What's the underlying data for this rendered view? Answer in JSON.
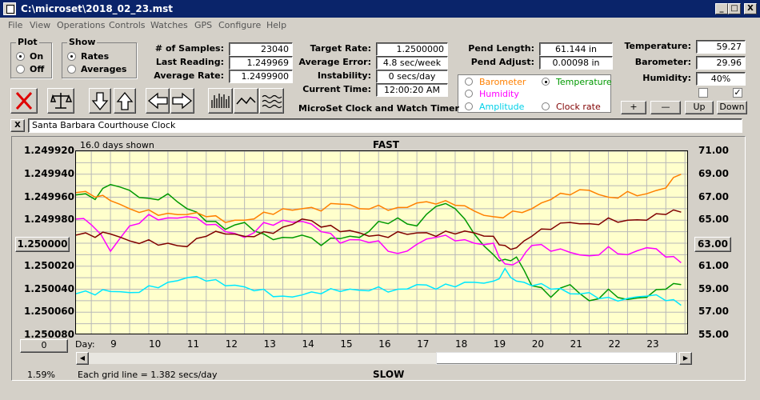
{
  "window": {
    "title": "C:\\microset\\2018_02_23.mst",
    "min": "_",
    "max": "□",
    "close": "X"
  },
  "menu": [
    "File",
    "View",
    "Operations",
    "Controls",
    "Watches",
    "GPS",
    "Configure",
    "Help"
  ],
  "plot_group": {
    "title": "Plot",
    "on": "On",
    "off": "Off",
    "selected": "On"
  },
  "show_group": {
    "title": "Show",
    "rates": "Rates",
    "averages": "Averages",
    "selected": "Rates"
  },
  "stats": {
    "samples_label": "# of Samples:",
    "samples": "23040",
    "last_label": "Last Reading:",
    "last": "1.249969",
    "avg_label": "Average Rate:",
    "avg": "1.2499900"
  },
  "target": {
    "rate_label": "Target Rate:",
    "rate": "1.2500000",
    "err_label": "Average Error:",
    "err": "4.8 sec/week",
    "inst_label": "Instability:",
    "inst": "0 secs/day",
    "time_label": "Current Time:",
    "time": "12:00:20 AM"
  },
  "pend": {
    "length_label": "Pend Length:",
    "length": "61.144 in",
    "adjust_label": "Pend Adjust:",
    "adjust": "0.00098 in"
  },
  "env": {
    "temp_label": "Temperature:",
    "temp": "59.27",
    "baro_label": "Barometer:",
    "baro": "29.96",
    "hum_label": "Humidity:",
    "hum": "40%"
  },
  "app_title": "MicroSet Clock and Watch Timer",
  "legend": {
    "barometer": "Barometer",
    "temperature": "Temperature",
    "humidity": "Humidity",
    "amplitude": "Amplitude",
    "clock_rate": "Clock rate",
    "selected": "Temperature"
  },
  "adjust_buttons": {
    "plus": "+",
    "minus": "—",
    "up": "Up",
    "down": "Down"
  },
  "checkbox_right": "✓",
  "clock_name": "Santa Barbara Courthouse Clock",
  "close_small": "X",
  "plot": {
    "days_shown": "16.0 days shown",
    "fast": "FAST",
    "slow": "SLOW",
    "grid_note": "Each grid line = 1.382 secs/day",
    "percent": "1.59%",
    "left_button": "1.250000",
    "right_button": "63.00",
    "zero_button": "0",
    "day_label": "Day:"
  },
  "colors": {
    "temperature": "#009900",
    "barometer": "#ff8000",
    "humidity": "#ff00ff",
    "amplitude": "#00e8ff",
    "clock_rate": "#800000",
    "plot_bg": "#ffffcc",
    "title_bar": "#0a246a"
  },
  "chart_data": {
    "type": "line",
    "title": "",
    "xlabel": "Day:",
    "x_ticks": [
      "9",
      "10",
      "11",
      "12",
      "13",
      "14",
      "15",
      "16",
      "17",
      "18",
      "19",
      "20",
      "21",
      "22",
      "23"
    ],
    "xlim": [
      8.1,
      24.1
    ],
    "y_left_ticks": [
      "1.249920",
      "1.249940",
      "1.249960",
      "1.249980",
      "1.250000",
      "1.250020",
      "1.250040",
      "1.250060",
      "1.250080"
    ],
    "y_left_range": [
      1.24992,
      1.25008
    ],
    "y_right_ticks": [
      "71.00",
      "69.00",
      "67.00",
      "65.00",
      "63.00",
      "61.00",
      "59.00",
      "57.00",
      "55.00"
    ],
    "y_right_range": [
      71,
      55
    ],
    "grid": true,
    "series": [
      {
        "name": "Temperature",
        "color": "#009900",
        "x": [
          8.1,
          8.6,
          9.0,
          9.5,
          10.0,
          10.5,
          11.0,
          11.5,
          12.0,
          12.5,
          13.0,
          13.5,
          14.0,
          14.5,
          15.0,
          15.5,
          16.0,
          16.5,
          17.0,
          17.5,
          18.0,
          18.5,
          19.0,
          19.3,
          19.6,
          20.0,
          20.5,
          21.0,
          21.5,
          22.0,
          22.5,
          23.0,
          23.5,
          23.9
        ],
        "y": [
          67.2,
          66.8,
          68.1,
          67.6,
          66.9,
          67.3,
          66.0,
          64.9,
          64.2,
          64.8,
          63.8,
          63.5,
          63.7,
          62.8,
          63.4,
          63.5,
          64.9,
          65.2,
          64.5,
          66.2,
          66.0,
          63.8,
          62.0,
          61.6,
          61.8,
          59.3,
          58.3,
          59.4,
          58.0,
          59.0,
          58.1,
          58.3,
          59.0,
          59.4
        ]
      },
      {
        "name": "Barometer",
        "color": "#ff8000",
        "x": [
          8.1,
          8.6,
          9.0,
          9.5,
          10.0,
          10.5,
          11.0,
          11.5,
          12.0,
          12.5,
          13.0,
          13.5,
          14.0,
          14.5,
          15.0,
          15.5,
          16.0,
          16.5,
          17.0,
          17.5,
          18.0,
          18.5,
          19.0,
          19.5,
          20.0,
          20.5,
          21.0,
          21.5,
          22.0,
          22.5,
          23.0,
          23.5,
          23.9
        ],
        "y": [
          67.4,
          67.0,
          66.7,
          66.0,
          65.9,
          65.6,
          65.5,
          65.3,
          64.8,
          65.0,
          65.7,
          66.0,
          66.0,
          65.8,
          66.4,
          66.0,
          66.3,
          66.1,
          66.5,
          66.4,
          66.3,
          65.8,
          65.3,
          65.8,
          66.0,
          66.8,
          67.2,
          67.6,
          67.0,
          67.5,
          67.3,
          67.8,
          69.0
        ]
      },
      {
        "name": "Humidity",
        "color": "#ff00ff",
        "x": [
          8.1,
          8.5,
          9.0,
          9.5,
          10.0,
          10.5,
          11.0,
          11.5,
          12.0,
          12.5,
          13.0,
          13.5,
          14.0,
          14.5,
          15.0,
          15.5,
          16.0,
          16.5,
          17.0,
          17.5,
          18.0,
          18.5,
          19.0,
          19.3,
          19.7,
          20.0,
          20.5,
          21.0,
          21.5,
          22.0,
          22.5,
          23.0,
          23.5,
          23.9
        ],
        "y": [
          65.1,
          64.6,
          62.3,
          64.5,
          65.5,
          65.2,
          65.3,
          64.6,
          64.0,
          63.5,
          64.8,
          65.0,
          64.9,
          64.0,
          63.0,
          63.3,
          63.2,
          62.1,
          62.9,
          63.5,
          63.2,
          63.0,
          63.0,
          61.2,
          61.5,
          62.8,
          62.3,
          62.2,
          61.9,
          62.7,
          62.0,
          62.6,
          61.8,
          61.3
        ]
      },
      {
        "name": "Amplitude",
        "color": "#00e8ff",
        "x": [
          8.1,
          8.6,
          9.0,
          9.5,
          10.0,
          10.5,
          11.0,
          11.5,
          12.0,
          12.5,
          13.0,
          13.5,
          14.0,
          14.5,
          15.0,
          15.5,
          16.0,
          16.5,
          17.0,
          17.5,
          18.0,
          18.5,
          19.0,
          19.3,
          19.6,
          20.0,
          20.5,
          21.0,
          21.5,
          22.0,
          22.5,
          23.0,
          23.5,
          23.9
        ],
        "y": [
          58.6,
          58.5,
          58.8,
          58.7,
          59.3,
          59.6,
          60.0,
          59.7,
          59.3,
          59.2,
          59.0,
          58.4,
          58.5,
          58.6,
          58.8,
          58.9,
          59.2,
          59.0,
          59.4,
          59.0,
          59.2,
          59.6,
          59.7,
          60.8,
          59.7,
          59.3,
          59.0,
          58.6,
          58.7,
          58.3,
          58.2,
          58.4,
          58.0,
          57.6
        ]
      },
      {
        "name": "Clock rate",
        "color": "#800000",
        "x": [
          8.1,
          8.6,
          9.0,
          9.5,
          10.0,
          10.5,
          11.0,
          11.5,
          12.0,
          12.5,
          13.0,
          13.5,
          14.0,
          14.5,
          15.0,
          15.5,
          16.0,
          16.5,
          17.0,
          17.5,
          18.0,
          18.5,
          19.0,
          19.3,
          19.6,
          20.0,
          20.5,
          21.0,
          21.5,
          22.0,
          22.5,
          23.0,
          23.5,
          23.9
        ],
        "y": [
          63.7,
          63.5,
          63.8,
          63.2,
          63.3,
          63.0,
          62.7,
          63.6,
          63.8,
          63.6,
          64.0,
          64.4,
          65.1,
          64.4,
          64.0,
          63.9,
          63.7,
          64.0,
          63.9,
          63.6,
          63.8,
          63.9,
          63.6,
          62.8,
          62.6,
          63.6,
          64.2,
          64.8,
          64.7,
          65.2,
          65.0,
          65.0,
          65.5,
          65.7
        ]
      }
    ]
  }
}
